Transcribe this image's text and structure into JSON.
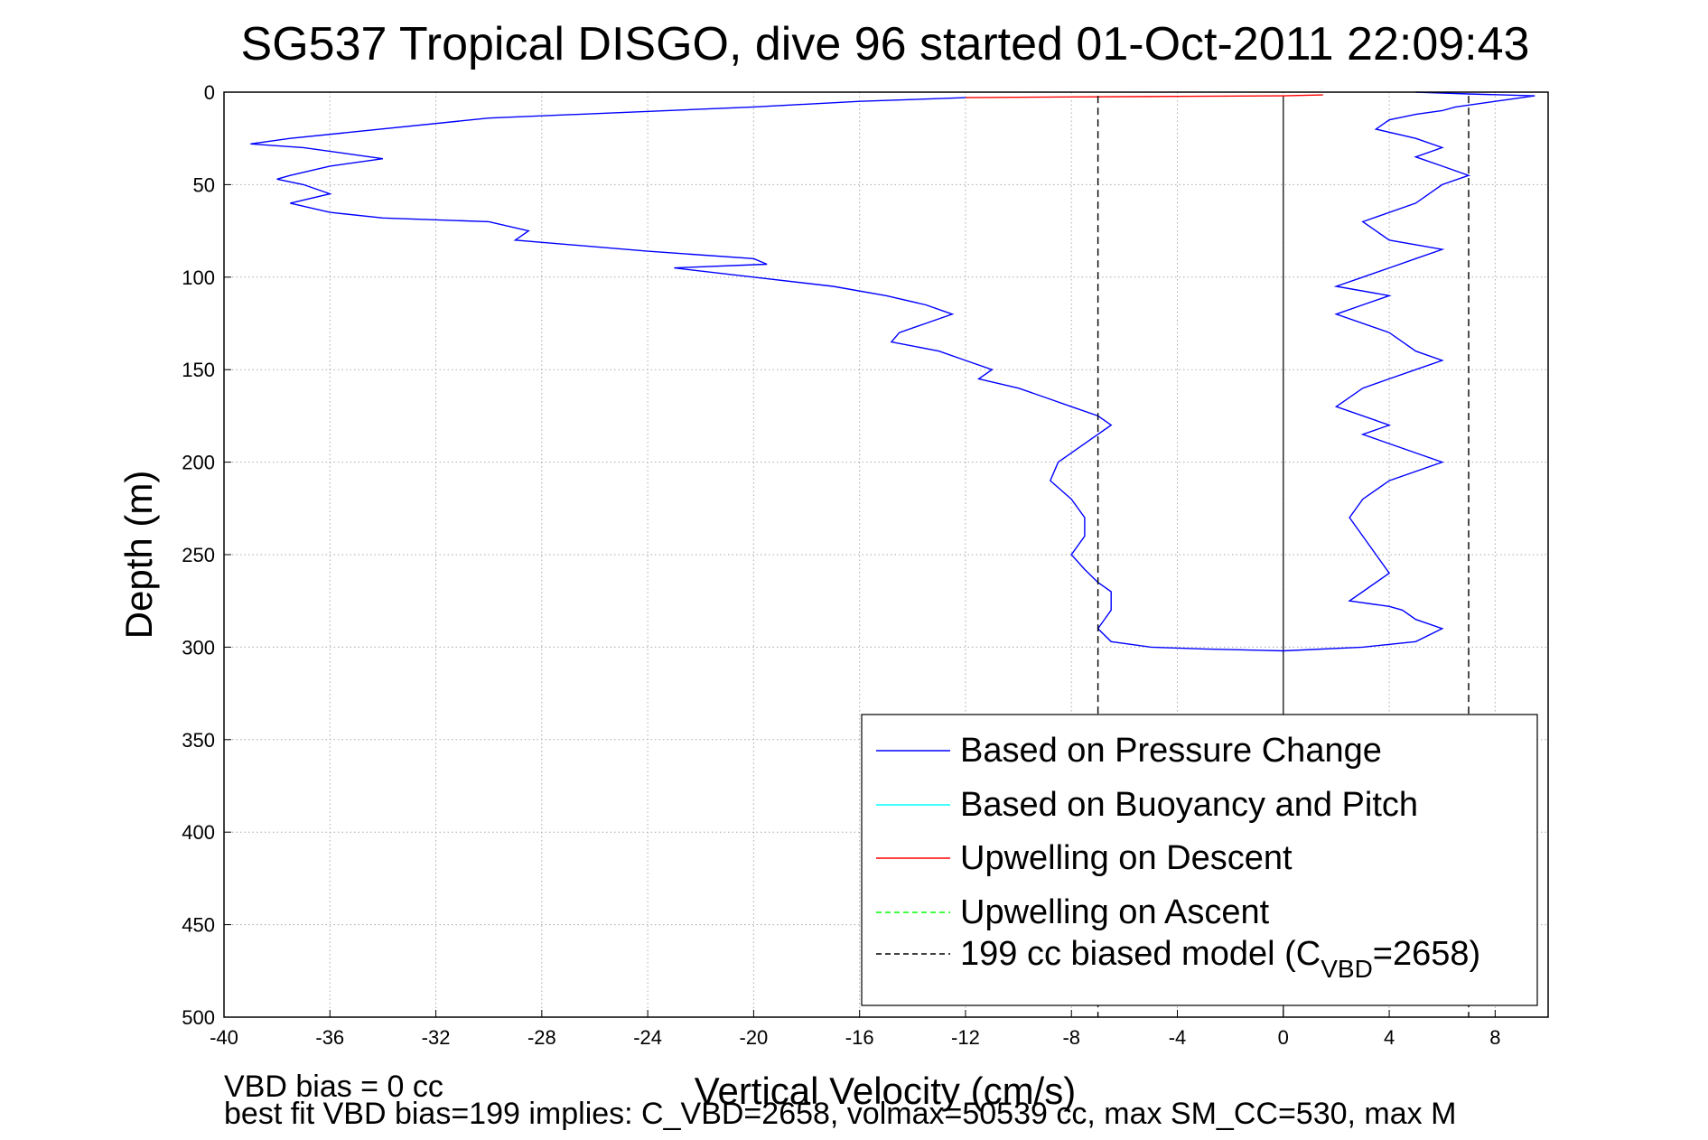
{
  "chart_data": {
    "type": "line",
    "title": "SG537 Tropical DISGO, dive 96 started 01-Oct-2011 22:09:43",
    "xlabel": "Vertical Velocity (cm/s)",
    "ylabel": "Depth (m)",
    "xlim": [
      -40,
      10
    ],
    "ylim": [
      0,
      500
    ],
    "y_reversed": true,
    "grid": true,
    "legend_position": "bottom-right",
    "xticks": [
      -40,
      -36,
      -32,
      -28,
      -24,
      -20,
      -16,
      -12,
      -8,
      -4,
      0,
      4,
      8
    ],
    "yticks": [
      0,
      50,
      100,
      150,
      200,
      250,
      300,
      350,
      400,
      450,
      500
    ],
    "series": [
      {
        "name": "Based on Pressure Change",
        "color": "#0000ff",
        "style": "solid",
        "segments": [
          {
            "label": "descent",
            "x": [
              -12,
              -16,
              -20,
              -30,
              -37.5,
              -39,
              -37,
              -34,
              -36,
              -37.5,
              -38,
              -37,
              -36,
              -37.5,
              -36,
              -34,
              -30,
              -28.5,
              -29,
              -24,
              -20,
              -19.5,
              -23,
              -20,
              -17,
              -15,
              -13.5,
              -12.5,
              -13.5,
              -14.5,
              -14.8,
              -13,
              -12,
              -11,
              -11.5,
              -10,
              -9,
              -8,
              -7,
              -6.5,
              -7.5,
              -8.5,
              -8.8,
              -8,
              -7.5,
              -7.5,
              -8,
              -7.5,
              -7,
              -6.5,
              -6.5,
              -7,
              -6.5,
              -5,
              -3,
              0
            ],
            "y": [
              3,
              5,
              8,
              14,
              25,
              28,
              30,
              36,
              40,
              45,
              47,
              50,
              55,
              60,
              65,
              68,
              70,
              75,
              80,
              86,
              90,
              93,
              95,
              100,
              105,
              110,
              115,
              120,
              125,
              130,
              135,
              140,
              145,
              150,
              155,
              160,
              165,
              170,
              175,
              180,
              190,
              200,
              210,
              220,
              230,
              240,
              250,
              258,
              265,
              270,
              280,
              290,
              297,
              300,
              301,
              302
            ]
          },
          {
            "label": "ascent",
            "x": [
              0,
              3,
              5,
              6,
              5,
              4.5,
              4,
              2.5,
              3,
              4,
              3,
              2.5,
              3,
              4,
              6,
              5,
              4,
              3,
              4,
              2,
              3,
              4,
              5,
              6,
              5,
              4,
              2,
              3,
              4,
              2,
              3,
              4,
              5,
              6,
              4,
              3,
              5,
              6,
              7,
              6,
              5,
              6,
              5,
              3.5,
              4,
              5,
              6,
              6.5,
              8,
              9.5,
              7,
              5
            ],
            "y": [
              302,
              300,
              297,
              290,
              285,
              280,
              278,
              275,
              270,
              260,
              240,
              230,
              220,
              210,
              200,
              195,
              190,
              185,
              180,
              170,
              160,
              155,
              150,
              145,
              140,
              130,
              120,
              115,
              110,
              105,
              100,
              95,
              90,
              85,
              80,
              70,
              60,
              50,
              45,
              40,
              35,
              30,
              25,
              20,
              15,
              12,
              10,
              8,
              5,
              2,
              1,
              0
            ]
          }
        ]
      },
      {
        "name": "Based on Buoyancy and Pitch",
        "color": "#00ffff",
        "style": "solid",
        "x": [],
        "y": []
      },
      {
        "name": "Upwelling on Descent",
        "color": "#ff0000",
        "style": "solid",
        "x": [
          -12,
          -8,
          -4,
          0,
          1.5
        ],
        "y": [
          3,
          2.6,
          2.3,
          2,
          1.5
        ]
      },
      {
        "name": "Upwelling on Ascent",
        "color": "#00ff00",
        "style": "dashed",
        "x": [],
        "y": []
      },
      {
        "name": "199 cc biased model (C",
        "name_subscript": "VBD",
        "name_suffix": "=2658)",
        "color": "#000000",
        "style": "dashed",
        "lines": [
          {
            "x": [
              -7,
              -7
            ],
            "y": [
              2,
              500
            ]
          },
          {
            "x": [
              7,
              7
            ],
            "y": [
              2,
              500
            ]
          }
        ]
      }
    ],
    "zero_line": {
      "x": 0,
      "y": [
        2,
        500
      ],
      "color": "#000000"
    }
  },
  "footer": {
    "line1": "VBD bias = 0 cc",
    "line2": "best fit VBD bias=199 implies: C_VBD=2658, volmax=50539 cc, max SM_CC=530, max M"
  }
}
